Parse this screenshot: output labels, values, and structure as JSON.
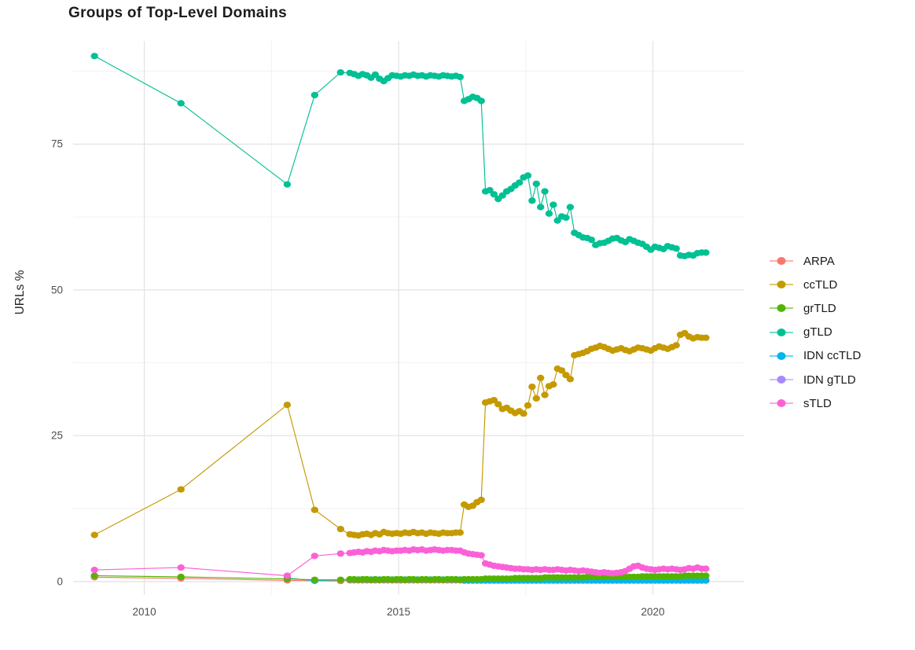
{
  "chart_data": {
    "type": "line",
    "title": "Groups of Top-Level Domains",
    "xlabel": "",
    "ylabel": "URLs %",
    "x_ticks": [
      2010,
      2015,
      2020
    ],
    "x_minor_gridlines": [
      2012.5,
      2017.5
    ],
    "y_ticks": [
      0,
      25,
      50,
      75
    ],
    "y_minor_gridlines": [
      12.5,
      37.5,
      62.5,
      87.5
    ],
    "xlim": [
      2008.6,
      2021.8
    ],
    "ylim": [
      -2.3,
      92.7
    ],
    "grid": true,
    "legend_position": "right",
    "marker": "point",
    "draw_order": [
      "ARPA",
      "IDN gTLD",
      "IDN ccTLD",
      "grTLD",
      "ccTLD",
      "gTLD",
      "sTLD"
    ],
    "series": [
      {
        "name": "ARPA",
        "color": "#F8766D",
        "sparse": [
          [
            2009.02,
            0.75
          ],
          [
            2010.72,
            0.55
          ],
          [
            2012.81,
            0.2
          ],
          [
            2013.35,
            0.15
          ],
          [
            2013.86,
            0.1
          ]
        ],
        "dense": [
          {
            "start": 2014.042,
            "step": 0.08333,
            "fill": 0.2,
            "count": 85
          }
        ]
      },
      {
        "name": "ccTLD",
        "color": "#C49A00",
        "sparse": [
          [
            2009.02,
            8.0
          ],
          [
            2010.72,
            15.8
          ],
          [
            2012.81,
            30.3
          ],
          [
            2013.35,
            12.3
          ],
          [
            2013.86,
            9.0
          ]
        ],
        "dense": [
          {
            "start": 2014.042,
            "step": 0.08333,
            "values": [
              8.1,
              8.0,
              7.9,
              8.1,
              8.2,
              8.0,
              8.3,
              8.1,
              8.5,
              8.3,
              8.2,
              8.3,
              8.2,
              8.4,
              8.3,
              8.5,
              8.3,
              8.4,
              8.2,
              8.4,
              8.3,
              8.2,
              8.4,
              8.3,
              8.3,
              8.4,
              8.4,
              13.2,
              12.8,
              13.0,
              13.6,
              14.0,
              30.7,
              30.9,
              31.1,
              30.4,
              29.6,
              29.8,
              29.3,
              28.9,
              29.2,
              28.8,
              30.2,
              33.4,
              31.4,
              34.9,
              32.0,
              33.5,
              33.8,
              36.5,
              36.2,
              35.4,
              34.7,
              38.8,
              39.0,
              39.2,
              39.5,
              39.9,
              40.1,
              40.4,
              40.2,
              39.9,
              39.6,
              39.8,
              40.0,
              39.7,
              39.5,
              39.8,
              40.1,
              40.0,
              39.8,
              39.6,
              40.0,
              40.3,
              40.1,
              39.9,
              40.2,
              40.5,
              42.3,
              42.6,
              42.0,
              41.7,
              41.9,
              41.8,
              41.8
            ]
          }
        ]
      },
      {
        "name": "grTLD",
        "color": "#53B400",
        "sparse": [
          [
            2009.02,
            1.0
          ],
          [
            2010.72,
            0.8
          ],
          [
            2012.81,
            0.45
          ],
          [
            2013.35,
            0.3
          ],
          [
            2013.86,
            0.3
          ]
        ],
        "dense": [
          {
            "start": 2014.042,
            "step": 0.08333,
            "values": [
              0.4,
              0.4,
              0.3,
              0.4,
              0.4,
              0.3,
              0.4,
              0.3,
              0.4,
              0.4,
              0.3,
              0.4,
              0.4,
              0.3,
              0.4,
              0.4,
              0.3,
              0.4,
              0.4,
              0.3,
              0.4,
              0.4,
              0.3,
              0.4,
              0.4,
              0.4,
              0.3,
              0.4,
              0.4,
              0.4,
              0.4,
              0.4,
              0.5,
              0.5,
              0.5,
              0.5,
              0.5,
              0.5,
              0.5,
              0.6,
              0.6,
              0.6,
              0.6,
              0.6,
              0.6,
              0.6,
              0.7,
              0.7,
              0.7,
              0.7,
              0.7,
              0.7,
              0.7,
              0.7,
              0.7,
              0.7,
              0.8,
              0.8,
              0.8,
              0.8,
              0.8,
              0.8,
              0.8,
              0.8,
              0.8,
              0.8,
              0.8,
              0.8,
              0.8,
              0.9,
              0.9,
              0.9,
              0.9,
              0.9,
              0.9,
              0.9,
              0.9,
              0.9,
              0.9,
              1.0,
              1.0,
              1.0,
              1.0,
              1.0,
              1.0
            ]
          }
        ]
      },
      {
        "name": "gTLD",
        "color": "#00C094",
        "sparse": [
          [
            2009.02,
            90.1
          ],
          [
            2010.72,
            82.0
          ],
          [
            2012.81,
            68.1
          ],
          [
            2013.35,
            83.4
          ],
          [
            2013.86,
            87.3
          ]
        ],
        "dense": [
          {
            "start": 2014.042,
            "step": 0.08333,
            "values": [
              87.2,
              87.0,
              86.7,
              87.0,
              86.8,
              86.4,
              86.9,
              86.2,
              85.8,
              86.3,
              86.8,
              86.7,
              86.6,
              86.8,
              86.7,
              86.9,
              86.7,
              86.8,
              86.6,
              86.8,
              86.7,
              86.6,
              86.8,
              86.7,
              86.6,
              86.7,
              86.5,
              82.4,
              82.7,
              83.1,
              82.9,
              82.4,
              66.9,
              67.1,
              66.4,
              65.6,
              66.2,
              66.9,
              67.3,
              67.9,
              68.4,
              69.3,
              69.6,
              65.3,
              68.2,
              64.2,
              66.9,
              63.1,
              64.6,
              61.9,
              62.6,
              62.4,
              64.2,
              59.8,
              59.4,
              59.0,
              58.9,
              58.6,
              57.7,
              58.0,
              58.1,
              58.4,
              58.8,
              58.9,
              58.5,
              58.2,
              58.7,
              58.4,
              58.1,
              57.9,
              57.4,
              56.9,
              57.4,
              57.2,
              57.0,
              57.5,
              57.3,
              57.1,
              55.9,
              55.8,
              56.0,
              55.9,
              56.3,
              56.4,
              56.4
            ]
          }
        ]
      },
      {
        "name": "IDN ccTLD",
        "color": "#00B6EB",
        "sparse": [
          [
            2012.81,
            0.6
          ],
          [
            2013.35,
            0.15
          ]
        ],
        "dense": [
          {
            "start": 2014.042,
            "step": 0.08333,
            "fill": 0.35,
            "count": 27
          },
          {
            "start": 2016.292,
            "step": 0.08333,
            "fill": 0.25,
            "count": 58
          }
        ]
      },
      {
        "name": "IDN gTLD",
        "color": "#A58AFF",
        "sparse": [],
        "dense": [
          {
            "start": 2016.292,
            "step": 0.08333,
            "fill": 0.15,
            "count": 58
          }
        ]
      },
      {
        "name": "sTLD",
        "color": "#FB61D7",
        "sparse": [
          [
            2009.02,
            2.0
          ],
          [
            2010.72,
            2.4
          ],
          [
            2012.81,
            1.0
          ],
          [
            2013.35,
            4.4
          ],
          [
            2013.86,
            4.8
          ]
        ],
        "dense": [
          {
            "start": 2014.042,
            "step": 0.08333,
            "values": [
              4.9,
              5.0,
              5.1,
              5.0,
              5.2,
              5.1,
              5.3,
              5.2,
              5.4,
              5.3,
              5.2,
              5.3,
              5.3,
              5.4,
              5.3,
              5.5,
              5.4,
              5.5,
              5.3,
              5.4,
              5.5,
              5.4,
              5.3,
              5.4,
              5.4,
              5.3,
              5.3,
              5.0,
              4.8,
              4.7,
              4.6,
              4.5,
              3.1,
              2.9,
              2.7,
              2.6,
              2.5,
              2.4,
              2.3,
              2.2,
              2.2,
              2.1,
              2.1,
              2.0,
              2.1,
              2.0,
              2.1,
              2.0,
              2.0,
              2.1,
              2.0,
              1.9,
              2.0,
              1.9,
              1.8,
              1.9,
              1.8,
              1.7,
              1.6,
              1.5,
              1.6,
              1.5,
              1.4,
              1.5,
              1.6,
              1.8,
              2.2,
              2.6,
              2.7,
              2.4,
              2.2,
              2.1,
              2.0,
              2.1,
              2.2,
              2.1,
              2.2,
              2.1,
              2.0,
              2.1,
              2.3,
              2.2,
              2.4,
              2.2,
              2.2
            ]
          }
        ]
      }
    ]
  },
  "style": {
    "grid_major_color": "#e4e4e4",
    "grid_minor_color": "#f1f1f1",
    "tick_label_color": "#4d4d4d",
    "title_color": "#1c1c1c",
    "background": "#ffffff"
  }
}
